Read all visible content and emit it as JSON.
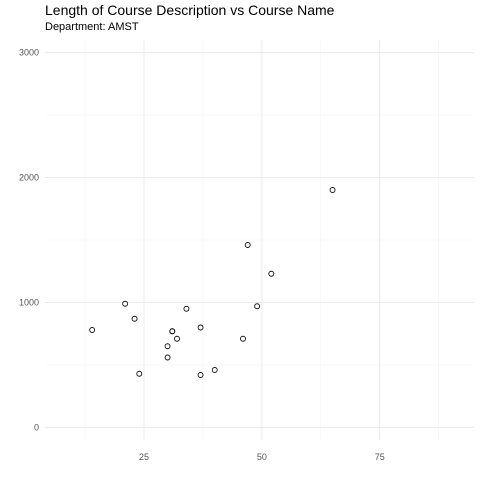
{
  "chart_data": {
    "type": "scatter",
    "title": "Length of Course Description vs Course Name",
    "subtitle": "Department: AMST",
    "xlabel": "",
    "ylabel": "",
    "xlim": [
      4,
      95
    ],
    "ylim": [
      -100,
      3100
    ],
    "x_ticks": [
      25,
      50,
      75
    ],
    "y_ticks": [
      0,
      1000,
      2000,
      3000
    ],
    "grid": true,
    "points": [
      {
        "x": 14,
        "y": 780
      },
      {
        "x": 21,
        "y": 990
      },
      {
        "x": 23,
        "y": 870
      },
      {
        "x": 24,
        "y": 430
      },
      {
        "x": 30,
        "y": 650
      },
      {
        "x": 30,
        "y": 560
      },
      {
        "x": 31,
        "y": 770
      },
      {
        "x": 31,
        "y": 770
      },
      {
        "x": 32,
        "y": 710
      },
      {
        "x": 34,
        "y": 950
      },
      {
        "x": 37,
        "y": 800
      },
      {
        "x": 37,
        "y": 420
      },
      {
        "x": 40,
        "y": 460
      },
      {
        "x": 46,
        "y": 710
      },
      {
        "x": 47,
        "y": 1460
      },
      {
        "x": 49,
        "y": 970
      },
      {
        "x": 52,
        "y": 1230
      },
      {
        "x": 65,
        "y": 1900
      }
    ]
  }
}
